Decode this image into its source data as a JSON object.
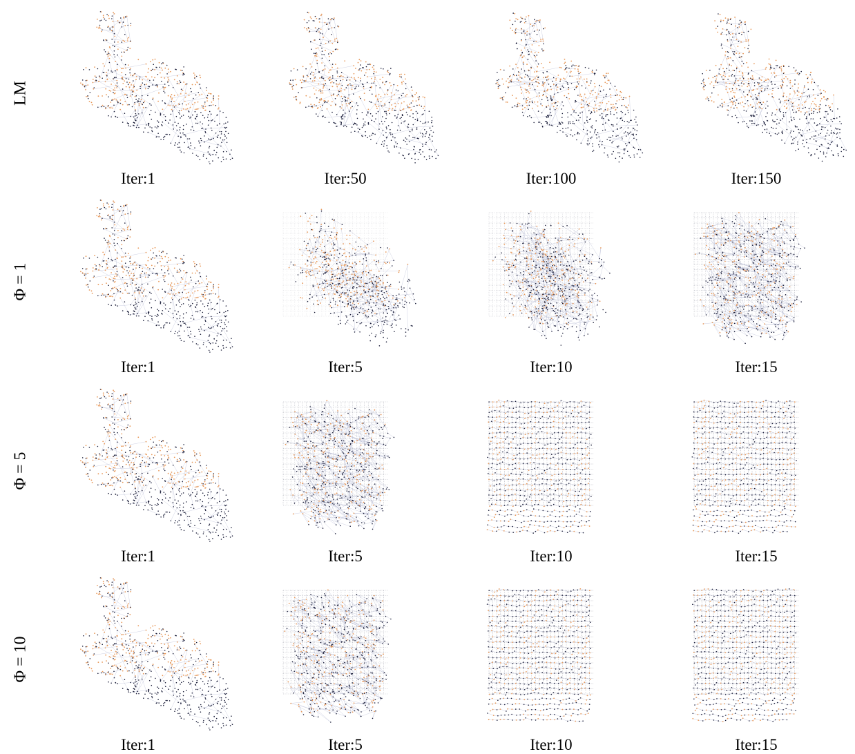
{
  "figure": {
    "rows": [
      {
        "label": "LM",
        "iterations": [
          "Iter:1",
          "Iter:50",
          "Iter:100",
          "Iter:150"
        ],
        "morph": [
          0,
          0.02,
          0.04,
          0.06
        ]
      },
      {
        "label": "Φ = 1",
        "iterations": [
          "Iter:1",
          "Iter:5",
          "Iter:10",
          "Iter:15"
        ],
        "morph": [
          0,
          0.35,
          0.6,
          0.8
        ]
      },
      {
        "label": "Φ = 5",
        "iterations": [
          "Iter:1",
          "Iter:5",
          "Iter:10",
          "Iter:15"
        ],
        "morph": [
          0,
          0.8,
          1,
          1
        ]
      },
      {
        "label": "Φ = 10",
        "iterations": [
          "Iter:1",
          "Iter:5",
          "Iter:10",
          "Iter:15"
        ],
        "morph": [
          0,
          0.85,
          1,
          1
        ]
      }
    ],
    "colors": {
      "landmarks": "#e8995a",
      "poses": "#1c1f3a",
      "edges": "#9aa0c4"
    }
  }
}
